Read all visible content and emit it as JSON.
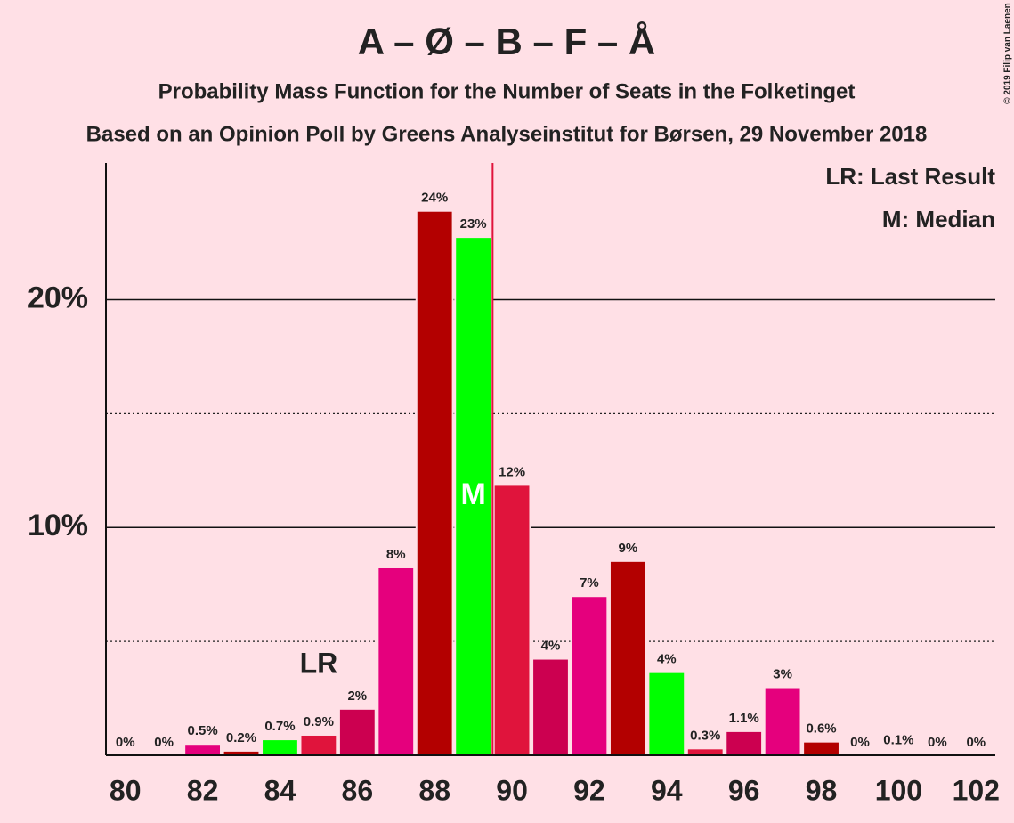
{
  "chart_data": {
    "type": "bar",
    "title": "A – Ø – B – F – Å",
    "subtitle": "Probability Mass Function for the Number of Seats in the Folketinget",
    "caption": "Based on an Opinion Poll by Greens Analyseinstitut for Børsen, 29 November 2018",
    "copyright": "© 2019 Filip van Laenen",
    "x": [
      80,
      81,
      82,
      83,
      84,
      85,
      86,
      87,
      88,
      89,
      90,
      91,
      92,
      93,
      94,
      95,
      96,
      97,
      98,
      99,
      100,
      101,
      102
    ],
    "values": [
      0,
      0,
      0.5,
      0.2,
      0.7,
      0.9,
      2.04,
      8.25,
      23.9,
      22.75,
      11.87,
      4.24,
      6.99,
      8.53,
      3.65,
      0.3,
      1.06,
      2.99,
      0.6,
      0,
      0.1,
      0,
      0
    ],
    "value_labels": [
      "0%",
      "0%",
      "0.5%",
      "0.2%",
      "0.7%",
      "0.9%",
      "2%",
      "8%",
      "24%",
      "23%",
      "12%",
      "4%",
      "7%",
      "9%",
      "4%",
      "0.3%",
      "1.1%",
      "3%",
      "0.6%",
      "0%",
      "0.1%",
      "0%",
      "0%"
    ],
    "colors": [
      "#e0143c",
      "#cc0050",
      "#e5007d",
      "#b30000",
      "#00ff00",
      "#e0143c",
      "#cc0050",
      "#e5007d",
      "#b30000",
      "#00ff00",
      "#e0143c",
      "#cc0050",
      "#e5007d",
      "#b30000",
      "#00ff00",
      "#e0143c",
      "#cc0050",
      "#e5007d",
      "#b30000",
      "#00ff00",
      "#e0143c",
      "#cc0050",
      "#e5007d"
    ],
    "xlim": [
      79.5,
      102.5
    ],
    "xticks": [
      80,
      82,
      84,
      86,
      88,
      90,
      92,
      94,
      96,
      98,
      100,
      102
    ],
    "ylim": [
      0,
      26
    ],
    "yticks": [
      {
        "value": 10,
        "label": "10%"
      },
      {
        "value": 20,
        "label": "20%"
      }
    ],
    "minor_yticks": [
      5,
      15
    ],
    "annotations": [
      {
        "label": "LR",
        "x": 85
      },
      {
        "label": "M",
        "x": 89
      }
    ],
    "legend": [
      "LR: Last Result",
      "M: Median"
    ],
    "median_line_color": "#e0143c"
  }
}
